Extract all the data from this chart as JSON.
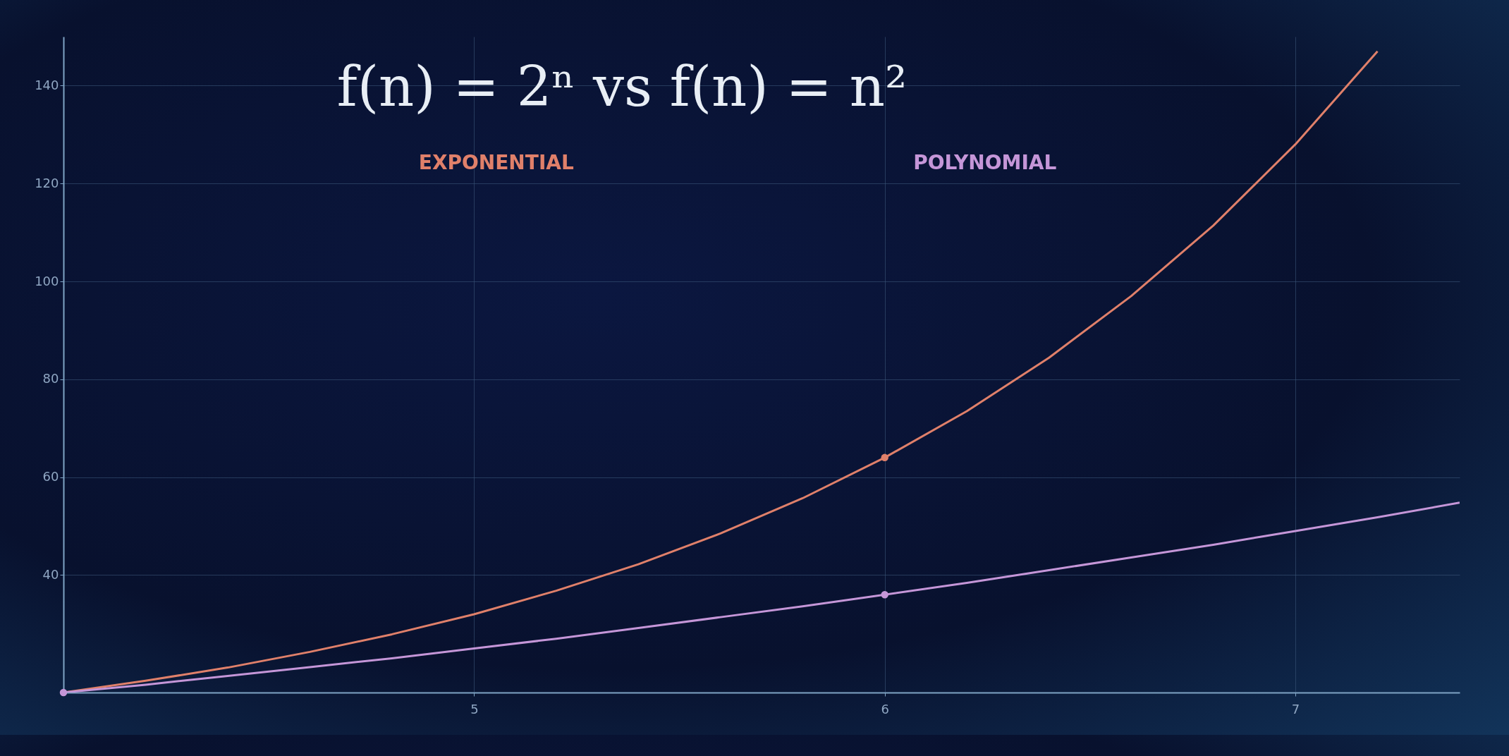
{
  "chart_data": {
    "type": "line",
    "title": "f(n) = 2ⁿ  vs  f(n) = n²",
    "xlim": [
      4,
      7.4
    ],
    "xticks": [
      5,
      6,
      7
    ],
    "ylim": [
      16,
      150
    ],
    "yticks": [
      40,
      60,
      80,
      100,
      120,
      140
    ],
    "grid": true,
    "legend": false,
    "line_style": "solid",
    "series": [
      {
        "name": "EXPONENTIAL",
        "color": "#e0806a",
        "x": [
          4,
          4.2,
          4.4,
          4.6,
          4.8,
          5,
          5.2,
          5.4,
          5.6,
          5.8,
          6,
          6.2,
          6.4,
          6.6,
          6.8,
          7,
          7.2
        ],
        "values": [
          16,
          18.4,
          21.1,
          24.3,
          27.9,
          32,
          36.8,
          42.2,
          48.5,
          55.7,
          64,
          73.5,
          84.4,
          97,
          111.4,
          128,
          147
        ]
      },
      {
        "name": "POLYNOMIAL",
        "color": "#c596d8",
        "x": [
          4,
          4.2,
          4.4,
          4.6,
          4.8,
          5,
          5.2,
          5.4,
          5.6,
          5.8,
          6,
          6.2,
          6.4,
          6.6,
          6.8,
          7,
          7.2,
          7.4
        ],
        "values": [
          16,
          17.6,
          19.4,
          21.2,
          23,
          25,
          27,
          29.2,
          31.4,
          33.6,
          36,
          38.4,
          41,
          43.6,
          46.2,
          49,
          51.8,
          54.8
        ]
      },
      {
        "type": "scatter",
        "color": "#e0806a",
        "x": [
          6
        ],
        "values": [
          64
        ]
      },
      {
        "type": "scatter",
        "color": "#c596d8",
        "x": [
          4,
          6
        ],
        "values": [
          16,
          36
        ]
      }
    ]
  }
}
